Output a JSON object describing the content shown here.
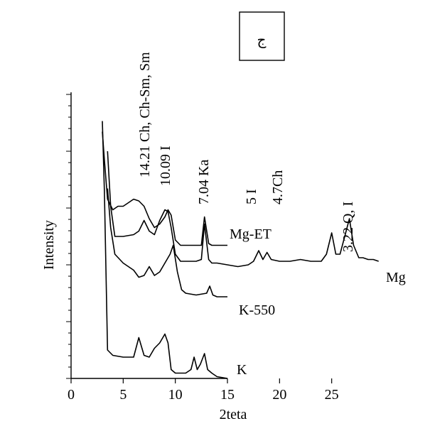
{
  "chart_data": {
    "type": "line",
    "xlabel": "2teta",
    "ylabel": "Intensity",
    "xlim": [
      0,
      30
    ],
    "x_ticks": [
      "0",
      "5",
      "10",
      "15",
      "20",
      "25"
    ],
    "panel_label": "ج",
    "series": [
      {
        "name": "Mg-ET",
        "x": [
          3.0,
          3.2,
          3.5,
          4.0,
          4.5,
          5.0,
          5.5,
          6.0,
          6.5,
          7.0,
          7.5,
          8.0,
          8.5,
          9.0,
          9.3,
          9.6,
          10.0,
          10.5,
          11.0,
          11.5,
          12.0,
          12.5,
          12.8,
          13.2,
          13.5,
          14.0,
          15.0
        ],
        "y": [
          0.94,
          0.78,
          0.56,
          0.5,
          0.52,
          0.52,
          0.54,
          0.56,
          0.55,
          0.52,
          0.45,
          0.4,
          0.42,
          0.46,
          0.5,
          0.47,
          0.33,
          0.3,
          0.3,
          0.3,
          0.3,
          0.3,
          0.46,
          0.31,
          0.3,
          0.3,
          0.3
        ]
      },
      {
        "name": "Mg",
        "x": [
          3.5,
          3.8,
          4.2,
          5.0,
          6.0,
          6.5,
          7.0,
          7.5,
          8.0,
          8.5,
          9.0,
          9.3,
          9.6,
          10.0,
          10.5,
          11.0,
          12.0,
          12.5,
          12.8,
          13.2,
          13.5,
          14.0,
          15.0,
          16.0,
          17.0,
          17.5,
          18.0,
          18.4,
          18.8,
          19.2,
          20.0,
          21.0,
          22.0,
          23.0,
          24.0,
          24.5,
          25.0,
          25.4,
          25.8,
          26.3,
          26.7,
          27.1,
          27.6,
          28.0,
          28.5,
          29.0,
          29.5
        ],
        "y": [
          0.83,
          0.52,
          0.35,
          0.35,
          0.36,
          0.38,
          0.44,
          0.38,
          0.36,
          0.44,
          0.5,
          0.49,
          0.4,
          0.25,
          0.21,
          0.21,
          0.21,
          0.22,
          0.42,
          0.22,
          0.2,
          0.2,
          0.19,
          0.18,
          0.19,
          0.21,
          0.27,
          0.22,
          0.26,
          0.22,
          0.21,
          0.21,
          0.22,
          0.21,
          0.21,
          0.25,
          0.37,
          0.25,
          0.25,
          0.36,
          0.45,
          0.3,
          0.23,
          0.23,
          0.22,
          0.22,
          0.21
        ]
      },
      {
        "name": "K-550",
        "x": [
          3.5,
          3.8,
          4.2,
          5.0,
          6.0,
          6.5,
          7.0,
          7.5,
          8.0,
          8.5,
          9.0,
          9.5,
          9.8,
          10.2,
          10.6,
          11.0,
          12.0,
          13.0,
          13.3,
          13.6,
          14.0,
          15.0
        ],
        "y": [
          0.62,
          0.4,
          0.25,
          0.2,
          0.16,
          0.12,
          0.13,
          0.18,
          0.13,
          0.15,
          0.2,
          0.25,
          0.3,
          0.15,
          0.05,
          0.03,
          0.02,
          0.03,
          0.07,
          0.02,
          0.01,
          0.01
        ]
      },
      {
        "name": "K",
        "x": [
          3.0,
          3.2,
          3.5,
          4.0,
          5.0,
          6.0,
          6.5,
          7.0,
          7.5,
          8.0,
          8.5,
          9.0,
          9.3,
          9.6,
          10.0,
          10.5,
          11.0,
          11.5,
          11.8,
          12.1,
          12.4,
          12.8,
          13.1,
          13.5,
          14.0,
          15.0
        ],
        "y": [
          1.0,
          0.6,
          -0.29,
          -0.32,
          -0.33,
          -0.33,
          -0.22,
          -0.32,
          -0.33,
          -0.28,
          -0.25,
          -0.2,
          -0.25,
          -0.4,
          -0.42,
          -0.42,
          -0.42,
          -0.4,
          -0.33,
          -0.4,
          -0.37,
          -0.31,
          -0.4,
          -0.42,
          -0.44,
          -0.45
        ]
      }
    ],
    "annotations": [
      "14.21 Ch, Ch-Sm, Sm",
      "10.09 I",
      "7.04 Ka",
      "5 I",
      "4.7Ch",
      "3.22 Q, I"
    ]
  }
}
